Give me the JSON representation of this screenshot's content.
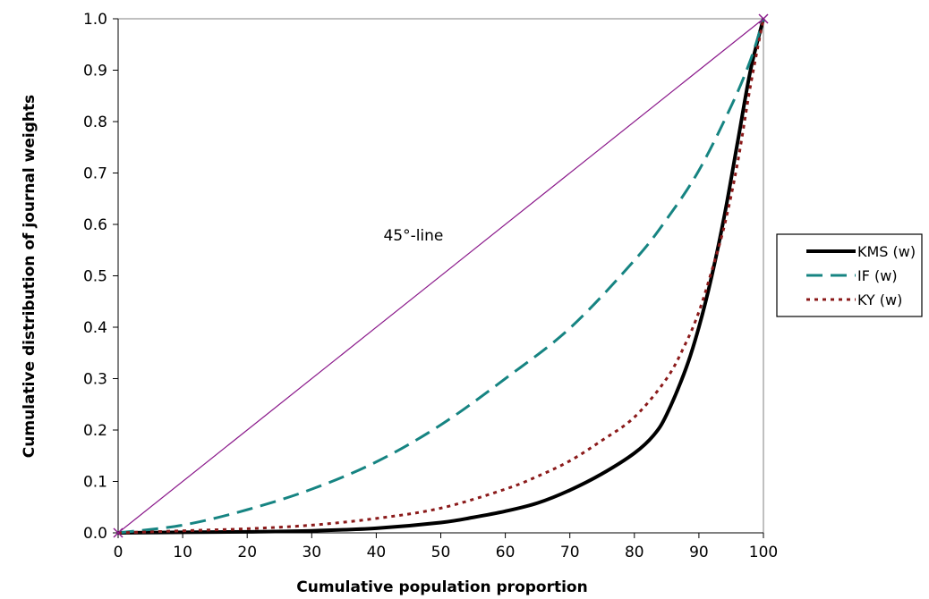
{
  "chart_data": {
    "type": "line",
    "title": "",
    "xlabel": "Cumulative population proportion",
    "ylabel": "Cumulative distribution of journal weights",
    "xlim": [
      0,
      100
    ],
    "ylim": [
      0,
      1
    ],
    "xticks": [
      "0",
      "10",
      "20",
      "30",
      "40",
      "50",
      "60",
      "70",
      "80",
      "90",
      "100"
    ],
    "yticks": [
      "0.0",
      "0.1",
      "0.2",
      "0.3",
      "0.4",
      "0.5",
      "0.6",
      "0.7",
      "0.8",
      "0.9",
      "1.0"
    ],
    "grid": false,
    "legend_position": "right",
    "annotation": {
      "text": "45°-line",
      "x": 45,
      "y": 0.6
    },
    "reference_line": {
      "x": [
        0,
        100
      ],
      "y": [
        0,
        1
      ],
      "color": "#8b1a8b"
    },
    "series": [
      {
        "name": "KMS (w)",
        "color": "#000000",
        "style": "solid",
        "x": [
          0,
          10,
          20,
          30,
          40,
          50,
          55,
          60,
          65,
          70,
          75,
          80,
          83,
          85,
          88,
          90,
          92,
          94,
          96,
          98,
          100
        ],
        "y": [
          0,
          0.001,
          0.002,
          0.004,
          0.009,
          0.02,
          0.03,
          0.042,
          0.058,
          0.083,
          0.115,
          0.155,
          0.19,
          0.23,
          0.32,
          0.4,
          0.5,
          0.62,
          0.76,
          0.9,
          1.0
        ]
      },
      {
        "name": "IF (w)",
        "color": "#168482",
        "style": "dashed",
        "x": [
          0,
          10,
          20,
          30,
          40,
          50,
          60,
          70,
          80,
          85,
          90,
          95,
          98,
          100
        ],
        "y": [
          0,
          0.015,
          0.045,
          0.085,
          0.138,
          0.21,
          0.3,
          0.398,
          0.53,
          0.61,
          0.705,
          0.83,
          0.92,
          1.0
        ]
      },
      {
        "name": "KY (w)",
        "color": "#8b1a1a",
        "style": "dotted",
        "x": [
          0,
          10,
          20,
          30,
          40,
          50,
          60,
          65,
          70,
          75,
          80,
          85,
          88,
          90,
          92,
          94,
          96,
          98,
          100
        ],
        "y": [
          0,
          0.004,
          0.008,
          0.015,
          0.028,
          0.048,
          0.085,
          0.11,
          0.14,
          0.18,
          0.225,
          0.3,
          0.37,
          0.43,
          0.51,
          0.6,
          0.72,
          0.87,
          1.0
        ]
      }
    ]
  }
}
